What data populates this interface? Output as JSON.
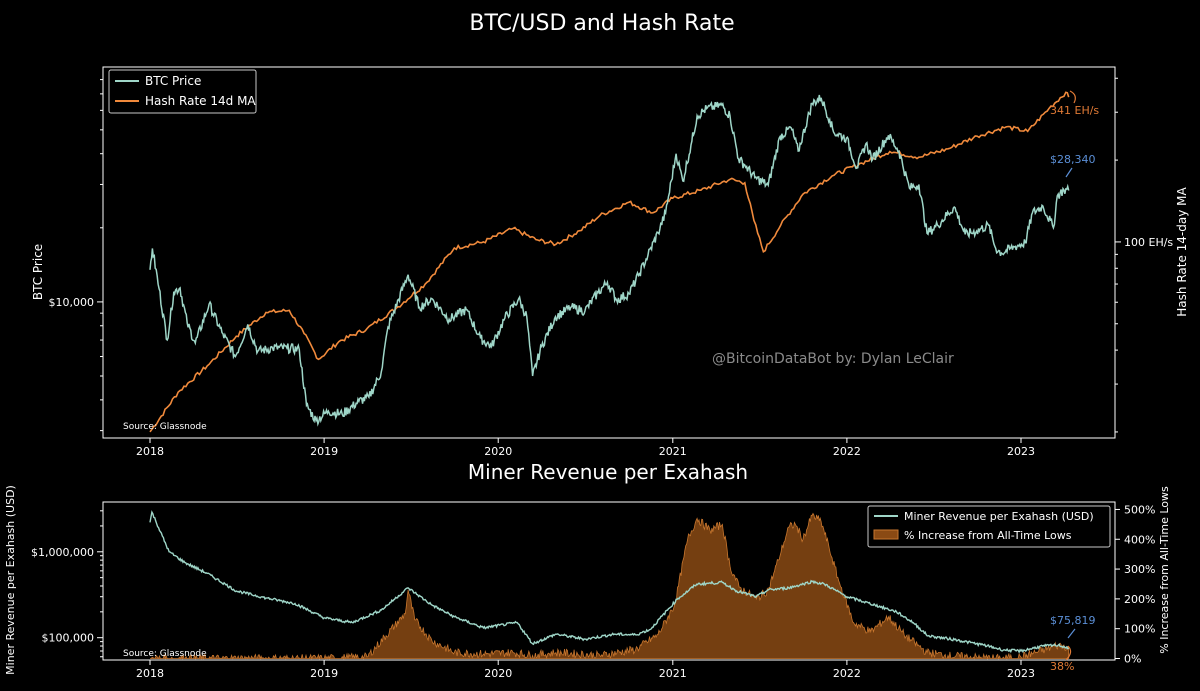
{
  "colors": {
    "background": "#000000",
    "btc_line": "#9fd6c8",
    "hash_line": "#f08a3c",
    "revenue_line": "#9fd6c8",
    "increase_fill": "#8a4a14",
    "increase_edge": "#c7762e",
    "annotation_blue": "#5b8fd6",
    "annotation_orange": "#e07a35",
    "axis": "#ffffff",
    "watermark": "#8a8a8a"
  },
  "chart_data": [
    {
      "type": "line",
      "title": "BTC/USD and Hash Rate",
      "ylabel": "BTC Price",
      "ylabel_right": "Hash Rate 14-day MA",
      "x_ticks": [
        "2018",
        "2019",
        "2020",
        "2021",
        "2022",
        "2023"
      ],
      "y_ticks": [
        "$10,000"
      ],
      "y_ticks_right": [
        "100 EH/s"
      ],
      "ylim": [
        2800,
        90000
      ],
      "ylim_right": [
        19,
        440
      ],
      "yscale": "log",
      "legend": {
        "position": "top-left",
        "entries": [
          "BTC Price",
          "Hash Rate 14d MA"
        ]
      },
      "source_note": "Source: Glassnode",
      "watermark": "@BitcoinDataBot by: Dylan LeClair",
      "series": [
        {
          "name": "BTC Price",
          "axis": "left",
          "x": [
            "2018-01-01",
            "2018-01-06",
            "2018-01-20",
            "2018-02-06",
            "2018-02-20",
            "2018-03-05",
            "2018-03-20",
            "2018-04-06",
            "2018-05-05",
            "2018-06-01",
            "2018-06-29",
            "2018-07-25",
            "2018-08-15",
            "2018-09-15",
            "2018-10-15",
            "2018-11-10",
            "2018-11-25",
            "2018-12-15",
            "2019-01-10",
            "2019-02-08",
            "2019-03-15",
            "2019-04-05",
            "2019-05-01",
            "2019-05-15",
            "2019-06-26",
            "2019-07-20",
            "2019-08-15",
            "2019-09-20",
            "2019-10-26",
            "2019-11-25",
            "2019-12-18",
            "2020-01-15",
            "2020-02-13",
            "2020-03-01",
            "2020-03-13",
            "2020-04-01",
            "2020-04-30",
            "2020-06-01",
            "2020-07-01",
            "2020-07-28",
            "2020-08-17",
            "2020-09-05",
            "2020-10-01",
            "2020-10-21",
            "2020-11-10",
            "2020-12-01",
            "2020-12-17",
            "2021-01-08",
            "2021-01-22",
            "2021-02-10",
            "2021-02-21",
            "2021-03-13",
            "2021-04-14",
            "2021-05-01",
            "2021-05-19",
            "2021-06-01",
            "2021-06-22",
            "2021-07-20",
            "2021-08-14",
            "2021-09-06",
            "2021-09-21",
            "2021-10-20",
            "2021-11-08",
            "2021-11-26",
            "2021-12-04",
            "2021-12-31",
            "2022-01-22",
            "2022-02-10",
            "2022-02-24",
            "2022-03-29",
            "2022-04-20",
            "2022-05-12",
            "2022-06-01",
            "2022-06-18",
            "2022-07-10",
            "2022-08-14",
            "2022-09-06",
            "2022-09-30",
            "2022-10-25",
            "2022-11-09",
            "2022-11-21",
            "2022-12-20",
            "2023-01-10",
            "2023-01-25",
            "2023-02-16",
            "2023-03-10",
            "2023-03-18",
            "2023-04-01",
            "2023-04-11"
          ],
          "values": [
            13500,
            16500,
            11300,
            7000,
            11000,
            11400,
            8200,
            6800,
            9800,
            7500,
            6000,
            8100,
            6300,
            6500,
            6500,
            6400,
            3800,
            3300,
            3600,
            3500,
            3950,
            4100,
            5200,
            7900,
            12900,
            9500,
            10300,
            8500,
            9300,
            7100,
            6600,
            8600,
            10300,
            8700,
            5000,
            6600,
            8700,
            9500,
            9200,
            10900,
            12000,
            10200,
            10800,
            12800,
            15500,
            19100,
            23000,
            40000,
            31000,
            45000,
            57000,
            61000,
            63000,
            57000,
            38000,
            36000,
            32000,
            29800,
            47000,
            51000,
            41000,
            64000,
            67500,
            55000,
            49000,
            46300,
            35000,
            44000,
            38000,
            47500,
            41000,
            29000,
            30000,
            19000,
            20500,
            24300,
            18800,
            19400,
            20500,
            16500,
            15800,
            16800,
            17400,
            23000,
            24500,
            20000,
            27000,
            28500,
            28340
          ]
        },
        {
          "name": "Hash Rate 14d MA",
          "axis": "right",
          "x": [
            "2018-01-01",
            "2018-03-01",
            "2018-05-01",
            "2018-07-01",
            "2018-09-01",
            "2018-10-20",
            "2018-11-20",
            "2018-12-20",
            "2019-02-01",
            "2019-04-01",
            "2019-06-01",
            "2019-08-01",
            "2019-10-01",
            "2019-12-01",
            "2020-02-01",
            "2020-03-20",
            "2020-05-01",
            "2020-06-20",
            "2020-08-01",
            "2020-10-01",
            "2020-11-20",
            "2021-01-01",
            "2021-03-01",
            "2021-05-01",
            "2021-06-01",
            "2021-06-20",
            "2021-07-10",
            "2021-08-15",
            "2021-10-01",
            "2021-12-01",
            "2022-02-01",
            "2022-04-01",
            "2022-06-01",
            "2022-08-01",
            "2022-10-01",
            "2022-12-01",
            "2023-01-15",
            "2023-03-01",
            "2023-04-05",
            "2023-04-11"
          ],
          "values": [
            20,
            28,
            35,
            45,
            55,
            56,
            46,
            37,
            43,
            48,
            57,
            70,
            95,
            100,
            112,
            102,
            98,
            110,
            125,
            140,
            128,
            145,
            155,
            170,
            165,
            120,
            92,
            115,
            150,
            175,
            195,
            215,
            205,
            220,
            245,
            265,
            255,
            310,
            355,
            341
          ]
        }
      ],
      "annotations": [
        {
          "label": "$28,340",
          "target": {
            "x": "2023-04-11",
            "y": 28340
          },
          "color": "blue"
        },
        {
          "label": "341 EH/s",
          "target": {
            "x": "2023-04-11",
            "y": 341
          },
          "color": "orange"
        }
      ]
    },
    {
      "type": "area",
      "title": "Miner Revenue per Exahash",
      "ylabel": "Miner Revenue per Exahash (USD)",
      "ylabel_right": "% Increase from All-Time Lows",
      "x_ticks": [
        "2018",
        "2019",
        "2020",
        "2021",
        "2022",
        "2023"
      ],
      "y_ticks": [
        "$1,000,000",
        "$100,000"
      ],
      "y_ticks_right": [
        "0%",
        "100%",
        "200%",
        "300%",
        "400%",
        "500%"
      ],
      "ylim": [
        55000,
        3800000
      ],
      "ylim_right": [
        -5,
        525
      ],
      "yscale": "log",
      "legend": {
        "position": "top-right",
        "entries": [
          "Miner Revenue per Exahash (USD)",
          "% Increase from All-Time Lows"
        ]
      },
      "source_note": "Source: Glassnode",
      "series": [
        {
          "name": "Miner Revenue per Exahash (USD)",
          "axis": "left",
          "x": [
            "2018-01-01",
            "2018-01-05",
            "2018-02-10",
            "2018-03-15",
            "2018-05-01",
            "2018-07-01",
            "2018-09-01",
            "2018-11-01",
            "2019-01-01",
            "2019-03-01",
            "2019-05-01",
            "2019-06-26",
            "2019-08-15",
            "2019-10-01",
            "2019-12-01",
            "2020-02-10",
            "2020-03-13",
            "2020-05-01",
            "2020-07-01",
            "2020-09-01",
            "2020-10-15",
            "2020-11-15",
            "2021-01-10",
            "2021-02-20",
            "2021-04-15",
            "2021-05-15",
            "2021-06-25",
            "2021-07-20",
            "2021-09-01",
            "2021-10-20",
            "2021-11-15",
            "2022-01-01",
            "2022-03-01",
            "2022-04-15",
            "2022-05-20",
            "2022-06-20",
            "2022-08-15",
            "2022-10-15",
            "2022-11-25",
            "2023-01-01",
            "2023-02-15",
            "2023-03-20",
            "2023-04-11"
          ],
          "values": [
            2200000,
            2900000,
            1000000,
            750000,
            560000,
            350000,
            290000,
            250000,
            170000,
            150000,
            210000,
            380000,
            240000,
            175000,
            130000,
            150000,
            85000,
            110000,
            96000,
            110000,
            108000,
            125000,
            280000,
            420000,
            440000,
            350000,
            300000,
            360000,
            380000,
            450000,
            420000,
            300000,
            240000,
            200000,
            150000,
            105000,
            95000,
            82000,
            72000,
            70000,
            80000,
            82000,
            75819
          ]
        },
        {
          "name": "% Increase from All-Time Lows",
          "axis": "right",
          "x": [
            "2018-01-01",
            "2018-06-01",
            "2019-01-01",
            "2019-04-01",
            "2019-06-20",
            "2019-06-26",
            "2019-07-10",
            "2019-08-15",
            "2019-10-01",
            "2019-12-01",
            "2020-02-01",
            "2020-03-13",
            "2020-05-01",
            "2020-08-01",
            "2020-10-15",
            "2020-12-01",
            "2021-01-05",
            "2021-02-01",
            "2021-02-21",
            "2021-03-20",
            "2021-04-15",
            "2021-05-01",
            "2021-05-20",
            "2021-06-25",
            "2021-07-20",
            "2021-08-10",
            "2021-09-01",
            "2021-09-15",
            "2021-10-01",
            "2021-10-20",
            "2021-11-08",
            "2021-11-25",
            "2021-12-15",
            "2022-01-15",
            "2022-02-20",
            "2022-03-29",
            "2022-05-01",
            "2022-06-18",
            "2022-08-01",
            "2022-10-01",
            "2022-11-21",
            "2023-01-01",
            "2023-02-20",
            "2023-03-20",
            "2023-04-11"
          ],
          "values": [
            0,
            0,
            0,
            5,
            150,
            230,
            130,
            60,
            20,
            15,
            20,
            10,
            20,
            10,
            30,
            80,
            180,
            400,
            470,
            430,
            450,
            310,
            240,
            200,
            230,
            330,
            440,
            450,
            400,
            480,
            460,
            370,
            260,
            120,
            90,
            140,
            80,
            20,
            10,
            3,
            0,
            5,
            30,
            45,
            38
          ]
        }
      ],
      "annotations": [
        {
          "label": "$75,819",
          "target": {
            "x": "2023-04-11",
            "y": 75819
          },
          "color": "blue"
        },
        {
          "label": "38%",
          "target": {
            "x": "2023-04-11",
            "y": 38
          },
          "color": "orange"
        }
      ]
    }
  ]
}
